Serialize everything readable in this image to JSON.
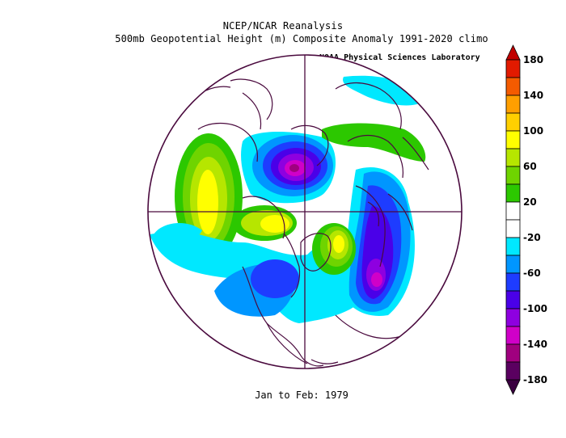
{
  "title": "NCEP/NCAR Reanalysis",
  "subtitle": "500mb Geopotential Height (m) Composite Anomaly 1991-2020 climo",
  "credit": "NOAA Physical Sciences Laboratory",
  "period": "Jan to Feb: 1979",
  "colorbar": {
    "labels": [
      "180",
      "140",
      "100",
      "60",
      "20",
      "-20",
      "-60",
      "-100",
      "-140",
      "-180"
    ],
    "bins": [
      {
        "color": "#e21a00"
      },
      {
        "color": "#f45b00"
      },
      {
        "color": "#ff9f00"
      },
      {
        "color": "#ffd000"
      },
      {
        "color": "#ffff00"
      },
      {
        "color": "#b6e600"
      },
      {
        "color": "#6fd400"
      },
      {
        "color": "#2cc800"
      },
      {
        "color": "#ffffff"
      },
      {
        "color": "#ffffff"
      },
      {
        "color": "#00e8ff"
      },
      {
        "color": "#0096ff"
      },
      {
        "color": "#1e3cff"
      },
      {
        "color": "#4a00e8"
      },
      {
        "color": "#8e00e0"
      },
      {
        "color": "#d000c8"
      },
      {
        "color": "#a0007f"
      },
      {
        "color": "#5a0060"
      }
    ],
    "max_arrow_color": "#c10000",
    "min_arrow_color": "#3a0040"
  }
}
